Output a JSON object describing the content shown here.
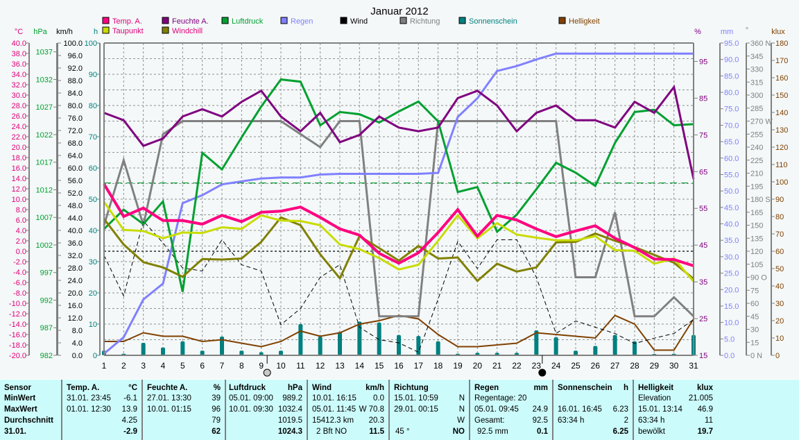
{
  "chart_data": {
    "type": "line",
    "title": "Januar 2012",
    "x": [
      1,
      2,
      3,
      4,
      5,
      6,
      7,
      8,
      9,
      10,
      11,
      12,
      13,
      14,
      15,
      16,
      17,
      18,
      19,
      20,
      21,
      22,
      23,
      24,
      25,
      26,
      27,
      28,
      29,
      30,
      31
    ],
    "xlabel": "",
    "grid": true,
    "legend": [
      {
        "name": "Temp. A.",
        "color": "#ff0080"
      },
      {
        "name": "Taupunkt",
        "color": "#c8dc00"
      },
      {
        "name": "Feuchte A.",
        "color": "#800080"
      },
      {
        "name": "Windchill",
        "color": "#808000"
      },
      {
        "name": "Luftdruck",
        "color": "#00a030"
      },
      {
        "name": "Regen",
        "color": "#8080ff"
      },
      {
        "name": "Wind",
        "color": "#000000"
      },
      {
        "name": "Richtung",
        "color": "#808080"
      },
      {
        "name": "Sonnenschein",
        "color": "#008080"
      },
      {
        "name": "Helligkeit",
        "color": "#804000"
      }
    ],
    "axes": {
      "temp": {
        "unit": "°C",
        "color": "#e0007a",
        "range": [
          -20,
          40
        ],
        "ticks": [
          "40.0",
          "38.0",
          "36.0",
          "34.0",
          "32.0",
          "30.0",
          "28.0",
          "26.0",
          "24.0",
          "22.0",
          "20.0",
          "18.0",
          "16.0",
          "14.0",
          "12.0",
          "10.0",
          "8.0",
          "6.0",
          "4.0",
          "2.0",
          "0.0",
          "-2.0",
          "-4.0",
          "-6.0",
          "-8.0",
          "-10.0",
          "-12.0",
          "-14.0",
          "-16.0",
          "-18.0",
          "-20.0"
        ]
      },
      "pressure": {
        "unit": "hPa",
        "color": "#00a030",
        "range": [
          982,
          1038.6
        ],
        "ticks": [
          "1037",
          "1032",
          "1027",
          "1022",
          "1017",
          "1012",
          "1007",
          "1002",
          "997",
          "992",
          "987",
          "982"
        ]
      },
      "wind": {
        "unit": "km/h",
        "color": "#000000",
        "range": [
          0,
          100
        ],
        "ticks": [
          "100.0",
          "96.0",
          "92.0",
          "88.0",
          "84.0",
          "80.0",
          "76.0",
          "72.0",
          "68.0",
          "64.0",
          "60.0",
          "56.0",
          "52.0",
          "48.0",
          "44.0",
          "40.0",
          "36.0",
          "32.0",
          "28.0",
          "24.0",
          "20.0",
          "16.0",
          "12.0",
          "8.0",
          "4.0",
          "0.0"
        ]
      },
      "sun": {
        "unit": "h",
        "color": "#008080",
        "range": [
          0,
          100
        ],
        "ticks": [
          "100",
          "90",
          "80",
          "70",
          "60",
          "50",
          "40",
          "30",
          "20",
          "10",
          "0"
        ]
      },
      "humidity": {
        "unit": "%",
        "color": "#800080",
        "range": [
          15,
          100
        ],
        "ticks": [
          "95",
          "85",
          "75",
          "65",
          "55",
          "45",
          "35",
          "25",
          "15"
        ]
      },
      "rain": {
        "unit": "mm",
        "color": "#8080ff",
        "range": [
          0,
          95
        ],
        "ticks": [
          "95.0",
          "90.0",
          "85.0",
          "80.0",
          "75.0",
          "70.0",
          "65.0",
          "60.0",
          "55.0",
          "50.0",
          "45.0",
          "40.0",
          "35.0",
          "30.0",
          "25.0",
          "20.0",
          "15.0",
          "10.0",
          "5.0",
          "0.0"
        ]
      },
      "direction": {
        "unit": "°",
        "color": "#808080",
        "range": [
          0,
          360
        ],
        "ticks": [
          "360 N",
          "345",
          "330",
          "315",
          "300",
          "285",
          "270 W",
          "255",
          "240",
          "225",
          "210",
          "195",
          "180 S",
          "165",
          "150",
          "135",
          "120",
          "105",
          "90  O",
          "75",
          "60",
          "45",
          "30",
          "15",
          "0   N"
        ]
      },
      "brightness": {
        "unit": "klux",
        "color": "#804000",
        "range": [
          0,
          180
        ],
        "ticks": [
          "180",
          "170",
          "160",
          "150",
          "140",
          "130",
          "120",
          "110",
          "100",
          "90",
          "80",
          "70",
          "60",
          "50",
          "40",
          "30",
          "20",
          "10",
          "0"
        ]
      }
    },
    "series": [
      {
        "name": "Temp. A.",
        "axis": "temp",
        "values": [
          12.9,
          6.7,
          8.3,
          5.9,
          5.9,
          5.2,
          6.9,
          5.7,
          7.5,
          7.7,
          8.5,
          6.5,
          4.3,
          3.1,
          -0.4,
          -2.3,
          -0.3,
          3.6,
          8.0,
          2.9,
          6.9,
          6.0,
          4.3,
          2.8,
          3.9,
          4.9,
          2.5,
          0.7,
          -1.5,
          -1.6,
          -2.8
        ]
      },
      {
        "name": "Taupunkt",
        "axis": "temp",
        "values": [
          9.5,
          4.1,
          3.9,
          2.5,
          3.6,
          3.5,
          4.6,
          4.3,
          6.9,
          5.9,
          5.8,
          5.0,
          1.3,
          0.4,
          -1.3,
          -3.5,
          -2.6,
          2.0,
          6.9,
          2.5,
          5.4,
          3.2,
          2.6,
          2.1,
          2.1,
          2.9,
          0.2,
          0.1,
          -2.4,
          -1.4,
          -5.8
        ]
      },
      {
        "name": "Windchill",
        "axis": "temp",
        "values": [
          6.2,
          1.3,
          -2.1,
          -3.1,
          -4.9,
          -1.5,
          -1.6,
          -1.4,
          1.8,
          6.5,
          5.0,
          -0.6,
          -5.2,
          2.9,
          0.6,
          -1.8,
          1.0,
          -1.4,
          -1.2,
          -5.7,
          -2.4,
          -3.9,
          -3.1,
          1.7,
          1.8,
          3.4,
          2.0,
          0.8,
          -0.7,
          -2.2,
          -5.3
        ]
      },
      {
        "name": "Feuchte A.",
        "axis": "humidity",
        "values": [
          81,
          79,
          72,
          74,
          80,
          82,
          80,
          84,
          87,
          80,
          76,
          81,
          73,
          75,
          80,
          77,
          76,
          77,
          85,
          87,
          83,
          76,
          81,
          83,
          79,
          79,
          77,
          84,
          81,
          88,
          63
        ]
      },
      {
        "name": "Luftdruck",
        "axis": "pressure",
        "values": [
          1004.9,
          1008.4,
          1005.8,
          1009.9,
          993.5,
          1018.7,
          1015.7,
          1021.5,
          1027.1,
          1032.0,
          1031.6,
          1023.7,
          1026.1,
          1025.7,
          1024.2,
          1026.2,
          1028.0,
          1024.4,
          1011.6,
          1012.5,
          1004.4,
          1007.5,
          1012.1,
          1016.9,
          1015.1,
          1012.7,
          1020.5,
          1026.1,
          1026.5,
          1023.7,
          1023.9
        ]
      },
      {
        "name": "Regen",
        "axis": "rain",
        "values": [
          0.5,
          5.5,
          17.0,
          21.8,
          46.3,
          48.7,
          52.0,
          52.9,
          53.8,
          54.1,
          54.1,
          55.0,
          55.2,
          55.2,
          55.2,
          55.2,
          55.2,
          55.5,
          72.5,
          78.2,
          86.5,
          88.0,
          90.0,
          91.8,
          91.8,
          91.8,
          91.8,
          91.8,
          91.8,
          91.8,
          91.8
        ]
      },
      {
        "name": "Wind",
        "axis": "wind",
        "values": [
          32.0,
          19.0,
          43.0,
          36.0,
          28.0,
          27.0,
          37.0,
          29.0,
          27.0,
          9.8,
          15.0,
          25.0,
          29.0,
          9.0,
          5.0,
          4.0,
          1.0,
          18.0,
          36.5,
          27.8,
          37.0,
          37.0,
          25.0,
          7.0,
          11.0,
          9.0,
          7.0,
          3.8,
          5.5,
          7.0,
          11.5
        ]
      },
      {
        "name": "Richtung",
        "axis": "direction",
        "values": [
          150,
          225,
          150,
          255,
          270,
          270,
          270,
          270,
          270,
          270,
          255,
          240,
          270,
          270,
          45,
          45,
          45,
          270,
          270,
          270,
          270,
          270,
          270,
          270,
          90,
          90,
          165,
          45,
          45,
          67,
          45
        ]
      },
      {
        "name": "Helligkeit",
        "axis": "brightness",
        "values": [
          8,
          8,
          13,
          11,
          11,
          8,
          9,
          7,
          5,
          8,
          14,
          11,
          13,
          18,
          20,
          23,
          21,
          12,
          5,
          5,
          6,
          7,
          13,
          12,
          11,
          10,
          23,
          18,
          3,
          3,
          21
        ]
      }
    ],
    "bars": {
      "name": "Sonnenschein",
      "axis": "sun",
      "values": [
        1.5,
        0.5,
        4.0,
        2.5,
        4.5,
        1.5,
        6.0,
        1.5,
        1.0,
        1.5,
        10.0,
        6.0,
        7.5,
        10.8,
        10.5,
        6.5,
        6.2,
        4.5,
        0.5,
        0.8,
        0.8,
        0.8,
        8.0,
        5.8,
        1.5,
        3.0,
        6.5,
        4.5,
        0.3,
        0.5,
        6.5
      ]
    },
    "reference_lines": [
      {
        "axis": "pressure",
        "value": 1013.25,
        "style": "dashed",
        "color": "#00a030"
      },
      {
        "axis": "temp",
        "value": 0.0,
        "style": "dotted",
        "color": "#000000"
      }
    ],
    "moon_markers": [
      {
        "day": 9.3,
        "phase": "full"
      },
      {
        "day": 23.3,
        "phase": "new"
      }
    ]
  },
  "stats": {
    "labels": {
      "sensor": "Sensor",
      "min": "MinWert",
      "max": "MaxWert",
      "avg": "Durchschnitt",
      "date": "31.01."
    },
    "temp": {
      "title": "Temp. A.",
      "unit": "°C",
      "min_time": "31.01.  23:45",
      "min": "-6.1",
      "max_time": "01.01.  12:30",
      "max": "13.9",
      "avg": "4.25",
      "current": "-2.9"
    },
    "humidity": {
      "title": "Feuchte A.",
      "unit": "%",
      "min_time": "27.01.  13:30",
      "min": "39",
      "max_time": "10.01.  01:15",
      "max": "96",
      "avg": "79",
      "current": "62"
    },
    "pressure": {
      "title": "Luftdruck",
      "unit": "hPa",
      "min_time": "05.01.  09:00",
      "min": "989.2",
      "max_time": "10.01.  09:30",
      "max": "1032.4",
      "avg": "1019.5",
      "current": "1024.3"
    },
    "wind": {
      "title": "Wind",
      "unit": "km/h",
      "min_time": "10.01.  16:15",
      "min": "0.0",
      "max_time": "05.01.  11:45",
      "max": "W 70.8",
      "distance": "15412.3 km",
      "avg": "20.3",
      "bft": "2 Bft NO",
      "current": "11.5"
    },
    "direction": {
      "title": "Richtung",
      "min_time": "15.01.  10:59",
      "min": "N",
      "max_time": "29.01.  00:15",
      "max": "N",
      "avg": "W",
      "deg": "45 °",
      "current": "NO"
    },
    "rain": {
      "title": "Regen",
      "unit": "mm",
      "days": "Regentage: 20",
      "max_time": "05.01.  09:45",
      "max": "24.9",
      "total_label": "Gesamt:",
      "total": "92.5",
      "month": "92.5 mm",
      "current": "0.1"
    },
    "sun": {
      "title": "Sonnenschein",
      "unit": "h",
      "max_time": "16.01.  16:45",
      "max": "6.23",
      "hours": "63:34 h",
      "avg": "2",
      "current": "6.25"
    },
    "brightness": {
      "title": "Helligkeit",
      "unit": "klux",
      "elev_label": "Elevation",
      "elev": "21.005",
      "max_time": "15.01.  13:14",
      "max": "46.9",
      "hours": "63:34 h",
      "avg": "11",
      "state": "bewölkt",
      "current": "19.7"
    }
  }
}
